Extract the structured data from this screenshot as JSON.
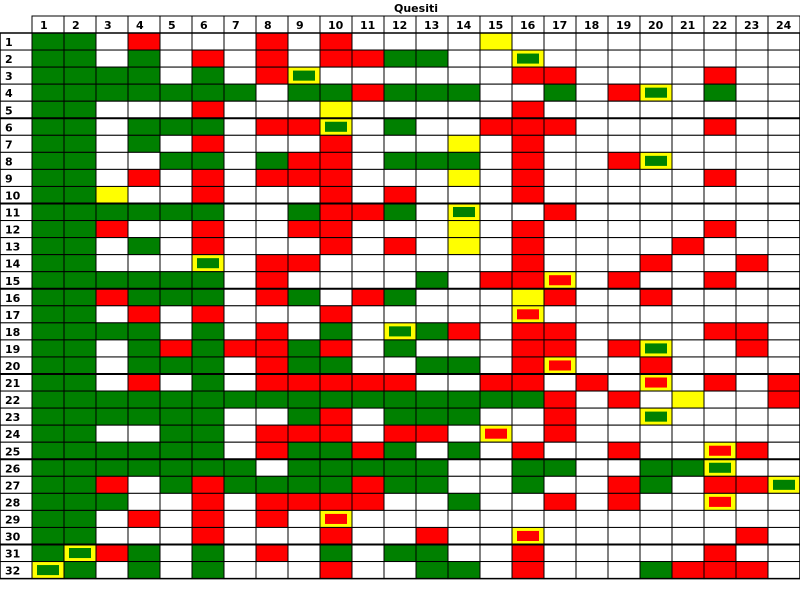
{
  "chart_data": {
    "type": "heatmap",
    "title": "Quesiti",
    "columns": [
      "1",
      "2",
      "3",
      "4",
      "5",
      "6",
      "7",
      "8",
      "9",
      "10",
      "11",
      "12",
      "13",
      "14",
      "15",
      "16",
      "17",
      "18",
      "19",
      "20",
      "21",
      "22",
      "23",
      "24"
    ],
    "rows": [
      "1",
      "2",
      "3",
      "4",
      "5",
      "6",
      "7",
      "8",
      "9",
      "10",
      "11",
      "12",
      "13",
      "14",
      "15",
      "16",
      "17",
      "18",
      "19",
      "20",
      "21",
      "22",
      "23",
      "24",
      "25",
      "26",
      "27",
      "28",
      "29",
      "30",
      "31",
      "32"
    ],
    "legend_codes": {
      "W": "empty",
      "G": "green",
      "R": "red",
      "Y": "yellow",
      "g": "yellow cell with green mark",
      "r": "yellow cell with red mark"
    },
    "colors": {
      "green": "#008000",
      "red": "#ff0000",
      "yellow": "#ffff00",
      "white": "#ffffff",
      "grid": "#000000"
    },
    "cells": [
      "GGWRWWWRWRWWWWYWWWWWWWWW",
      "GGWGWRWRWRRGGWWgWWWWWWWW",
      "GGGGWGWRgWWWWWWRRWWWWRWW",
      "GGGGGGGWGGRGGGWWGWRgWGWW",
      "GGWWWRWWWYWWWWWRWWWWWWWW",
      "GGWGGGWRRgWGWWRRRWWWWRWW",
      "GGWGWRWWWRWWWYWRWWWWWWWW",
      "GGWWGGWGRRWGGGWRWWRgWWWW",
      "GGWRWRWRRRWWWYWRWWWWWRWW",
      "GGYWWRWWWRWRWWWRWWWWWWWW",
      "GGGGGGWWGRRGWgWWRWWWWWWW",
      "GGRWWRWWRRWWWYWRWWWWWRWW",
      "GGWGWRWWWRWRWYWRWWWWRWWW",
      "GGWWWgWRRWWWWWWRWWWRWWRW",
      "GGGGGGWRWWWWGWRRrWRWWRWW",
      "GGRGGGWRGWRGWWWYRWWRWWWW",
      "GGWRWRWWWRWWWWWrWWWWWWWW",
      "GGGGWGWRWGWgGRWRRWWWWRRW",
      "GGWGRGRRGRWGWWWRRWRgWWRW",
      "GGWGGGWRGGWWGGWRrWWRWWWW",
      "GGWRWGWRRRRRWWRRWRWrWRWR",
      "GGGGGGGGGGGGGGGGRWRWYWWR",
      "GGGGGGWWGRWGGGWWRWWgWWWW",
      "GGWWGGWRRRWRRWrWRWWWWWWW",
      "GGGGGGWRGGRGWGWRWWRWWrRW",
      "GGGGGGGWGGGGGWWGGWWGGgWW",
      "GGRWGRGGGGRGGWWGWWRGWRRg",
      "GGGWWRWRRRRWWGWWRWRWWrWW",
      "GGWRWRWRWrWWWWWWWWWWWWWW",
      "GGWWWRWWWRWWRWWrWWWWWWRW",
      "GgRGWGWRWGWGGWWRWWWWWRWW",
      "gGWGWGWWWRWWGGWRWWWGRRRW"
    ]
  }
}
